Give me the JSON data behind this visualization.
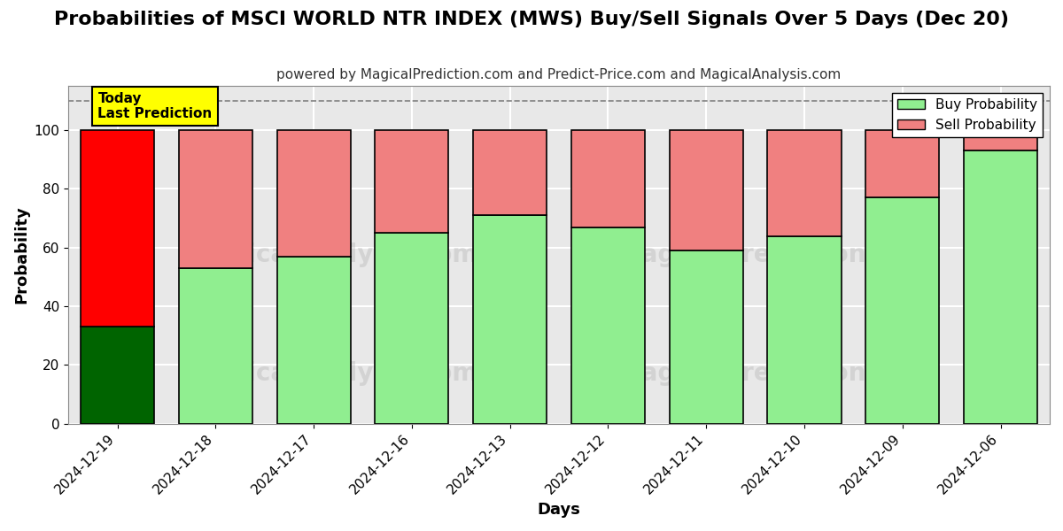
{
  "title": "Probabilities of MSCI WORLD NTR INDEX (MWS) Buy/Sell Signals Over 5 Days (Dec 20)",
  "subtitle": "powered by MagicalPrediction.com and Predict-Price.com and MagicalAnalysis.com",
  "xlabel": "Days",
  "ylabel": "Probability",
  "categories": [
    "2024-12-19",
    "2024-12-18",
    "2024-12-17",
    "2024-12-16",
    "2024-12-13",
    "2024-12-12",
    "2024-12-11",
    "2024-12-10",
    "2024-12-09",
    "2024-12-06"
  ],
  "buy_values": [
    33,
    53,
    57,
    65,
    71,
    67,
    59,
    64,
    77,
    93
  ],
  "sell_values": [
    67,
    47,
    43,
    35,
    29,
    33,
    41,
    36,
    23,
    7
  ],
  "today_bar_buy_color": "#006400",
  "today_bar_sell_color": "#FF0000",
  "other_buy_color": "#90EE90",
  "other_sell_color": "#F08080",
  "today_label_bg": "#FFFF00",
  "today_label_text": "Today\nLast Prediction",
  "legend_buy_label": "Buy Probability",
  "legend_sell_label": "Sell Probability",
  "ylim": [
    0,
    115
  ],
  "dashed_line_y": 110,
  "plot_bg_color": "#e8e8e8",
  "background_color": "#ffffff",
  "grid_color": "#ffffff",
  "bar_edge_color": "#000000",
  "title_fontsize": 16,
  "subtitle_fontsize": 11,
  "axis_label_fontsize": 13,
  "tick_fontsize": 11,
  "legend_fontsize": 11,
  "bar_width": 0.75
}
